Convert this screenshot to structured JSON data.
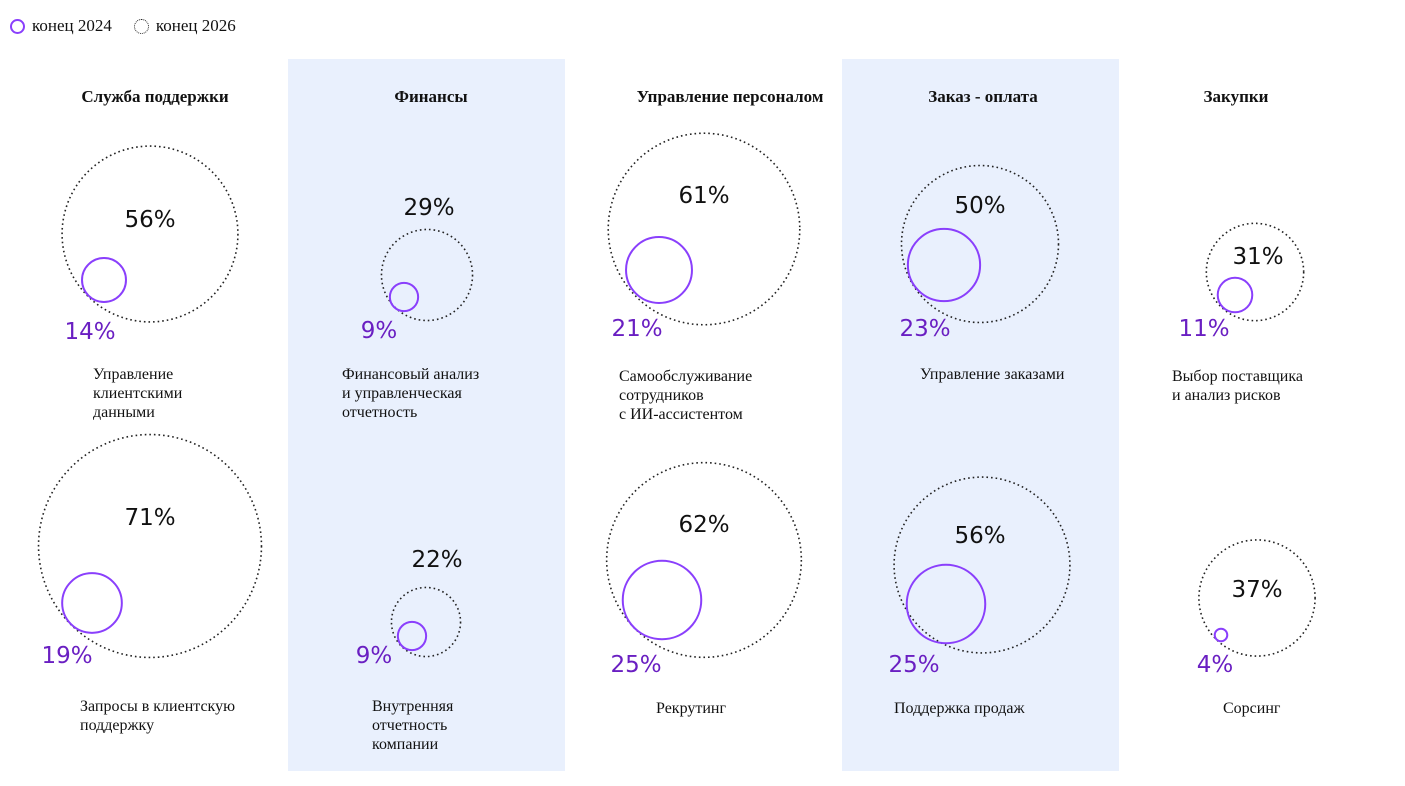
{
  "chart_data": {
    "type": "bubble",
    "legend": [
      {
        "name": "конец 2024",
        "color": "#8a3ffc",
        "style": "solid"
      },
      {
        "name": "конец 2026",
        "color": "#222222",
        "style": "dotted"
      }
    ],
    "legend_placement": "top-left",
    "columns": [
      {
        "title": "Служба поддержки",
        "highlighted": false,
        "items": [
          {
            "label": "Управление\nклиентскими\nданными",
            "end_2024": 14,
            "end_2026": 56
          },
          {
            "label": "Запросы в клиентскую\nподдержку",
            "end_2024": 19,
            "end_2026": 71
          }
        ]
      },
      {
        "title": "Финансы",
        "highlighted": true,
        "items": [
          {
            "label": "Финансовый анализ\nи управленческая\nотчетность",
            "end_2024": 9,
            "end_2026": 29
          },
          {
            "label": "Внутренняя\nотчетность\nкомпании",
            "end_2024": 9,
            "end_2026": 22
          }
        ]
      },
      {
        "title": "Управление персоналом",
        "highlighted": false,
        "items": [
          {
            "label": "Самообслуживание\nсотрудников\nс ИИ-ассистентом",
            "end_2024": 21,
            "end_2026": 61
          },
          {
            "label": "Рекрутинг",
            "end_2024": 25,
            "end_2026": 62
          }
        ]
      },
      {
        "title": "Заказ - оплата",
        "highlighted": true,
        "items": [
          {
            "label": "Управление заказами",
            "end_2024": 23,
            "end_2026": 50
          },
          {
            "label": "Поддержка продаж",
            "end_2024": 25,
            "end_2026": 56
          }
        ]
      },
      {
        "title": "Закупки",
        "highlighted": false,
        "items": [
          {
            "label": "Выбор поставщика\nи анализ рисков",
            "end_2024": 11,
            "end_2026": 31
          },
          {
            "label": "Сорсинг",
            "end_2024": 4,
            "end_2026": 37
          }
        ]
      }
    ],
    "colors": {
      "end_2024": "#8a3ffc",
      "end_2024_label": "#6a1fc2",
      "band": "#e9f0fd"
    }
  }
}
